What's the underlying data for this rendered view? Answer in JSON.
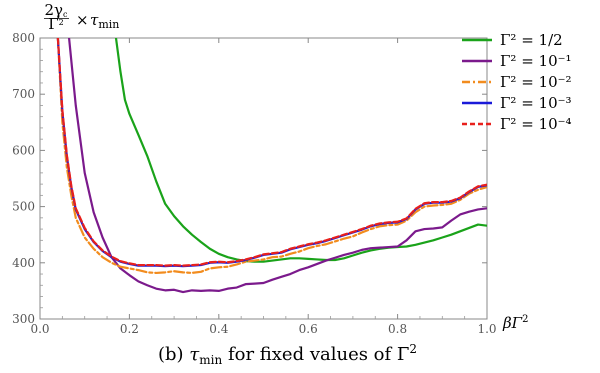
{
  "chart_data": {
    "type": "line",
    "title": "",
    "xlabel": "βΓ²",
    "ylabel": "2γc/Γ² × τmin",
    "caption": "(b) τmin for fixed values of Γ²",
    "xlim": [
      0,
      1.0
    ],
    "ylim": [
      300,
      800
    ],
    "x_ticks": [
      0,
      0.2,
      0.4,
      0.6,
      0.8,
      1.0
    ],
    "x_tick_labels": [
      "0.0",
      "0.2",
      "0.4",
      "0.6",
      "0.8",
      "1.0"
    ],
    "y_ticks": [
      300,
      400,
      500,
      600,
      700,
      800
    ],
    "y_tick_labels": [
      "300",
      "400",
      "500",
      "600",
      "700",
      "800"
    ],
    "grid": false,
    "legend_position": "top-right",
    "series": [
      {
        "name": "Γ² = 1/2",
        "color": "#1aa31a",
        "style": "solid",
        "points": [
          [
            0.17,
            800
          ],
          [
            0.18,
            740
          ],
          [
            0.19,
            690
          ],
          [
            0.2,
            665
          ],
          [
            0.22,
            628
          ],
          [
            0.24,
            590
          ],
          [
            0.26,
            545
          ],
          [
            0.28,
            505
          ],
          [
            0.3,
            483
          ],
          [
            0.32,
            465
          ],
          [
            0.34,
            450
          ],
          [
            0.36,
            437
          ],
          [
            0.38,
            425
          ],
          [
            0.4,
            416
          ],
          [
            0.42,
            410
          ],
          [
            0.44,
            406
          ],
          [
            0.46,
            403
          ],
          [
            0.48,
            402
          ],
          [
            0.5,
            402
          ],
          [
            0.52,
            404
          ],
          [
            0.54,
            406
          ],
          [
            0.56,
            408
          ],
          [
            0.58,
            408
          ],
          [
            0.6,
            407
          ],
          [
            0.62,
            406
          ],
          [
            0.64,
            405
          ],
          [
            0.66,
            405
          ],
          [
            0.68,
            408
          ],
          [
            0.7,
            413
          ],
          [
            0.72,
            418
          ],
          [
            0.74,
            422
          ],
          [
            0.76,
            425
          ],
          [
            0.78,
            427
          ],
          [
            0.8,
            428
          ],
          [
            0.82,
            429
          ],
          [
            0.84,
            432
          ],
          [
            0.86,
            436
          ],
          [
            0.88,
            440
          ],
          [
            0.9,
            445
          ],
          [
            0.92,
            450
          ],
          [
            0.94,
            456
          ],
          [
            0.96,
            462
          ],
          [
            0.98,
            468
          ],
          [
            1.0,
            466
          ]
        ]
      },
      {
        "name": "Γ² = 10⁻¹",
        "color": "#7b1a8c",
        "style": "solid",
        "points": [
          [
            0.065,
            800
          ],
          [
            0.08,
            680
          ],
          [
            0.1,
            560
          ],
          [
            0.12,
            490
          ],
          [
            0.14,
            445
          ],
          [
            0.16,
            410
          ],
          [
            0.18,
            390
          ],
          [
            0.2,
            378
          ],
          [
            0.22,
            367
          ],
          [
            0.24,
            360
          ],
          [
            0.26,
            354
          ],
          [
            0.28,
            351
          ],
          [
            0.3,
            352
          ],
          [
            0.32,
            348
          ],
          [
            0.34,
            351
          ],
          [
            0.36,
            350
          ],
          [
            0.38,
            351
          ],
          [
            0.4,
            350
          ],
          [
            0.42,
            354
          ],
          [
            0.44,
            356
          ],
          [
            0.46,
            362
          ],
          [
            0.48,
            363
          ],
          [
            0.5,
            364
          ],
          [
            0.52,
            370
          ],
          [
            0.54,
            375
          ],
          [
            0.56,
            380
          ],
          [
            0.58,
            387
          ],
          [
            0.6,
            392
          ],
          [
            0.62,
            398
          ],
          [
            0.64,
            404
          ],
          [
            0.66,
            409
          ],
          [
            0.68,
            414
          ],
          [
            0.7,
            418
          ],
          [
            0.72,
            423
          ],
          [
            0.74,
            426
          ],
          [
            0.76,
            427
          ],
          [
            0.78,
            428
          ],
          [
            0.8,
            429
          ],
          [
            0.82,
            440
          ],
          [
            0.84,
            456
          ],
          [
            0.86,
            460
          ],
          [
            0.88,
            461
          ],
          [
            0.9,
            463
          ],
          [
            0.92,
            475
          ],
          [
            0.94,
            486
          ],
          [
            0.96,
            491
          ],
          [
            0.98,
            495
          ],
          [
            1.0,
            497
          ]
        ]
      },
      {
        "name": "Γ² = 10⁻²",
        "color": "#f28c1e",
        "style": "dashdot",
        "points": [
          [
            0.04,
            800
          ],
          [
            0.05,
            650
          ],
          [
            0.06,
            570
          ],
          [
            0.07,
            520
          ],
          [
            0.08,
            480
          ],
          [
            0.1,
            445
          ],
          [
            0.12,
            425
          ],
          [
            0.14,
            410
          ],
          [
            0.16,
            400
          ],
          [
            0.18,
            393
          ],
          [
            0.2,
            390
          ],
          [
            0.22,
            387
          ],
          [
            0.24,
            383
          ],
          [
            0.26,
            382
          ],
          [
            0.28,
            383
          ],
          [
            0.3,
            385
          ],
          [
            0.32,
            383
          ],
          [
            0.34,
            382
          ],
          [
            0.36,
            384
          ],
          [
            0.38,
            390
          ],
          [
            0.4,
            392
          ],
          [
            0.42,
            393
          ],
          [
            0.44,
            397
          ],
          [
            0.46,
            402
          ],
          [
            0.48,
            404
          ],
          [
            0.5,
            406
          ],
          [
            0.52,
            410
          ],
          [
            0.54,
            411
          ],
          [
            0.56,
            416
          ],
          [
            0.58,
            420
          ],
          [
            0.6,
            426
          ],
          [
            0.62,
            430
          ],
          [
            0.64,
            433
          ],
          [
            0.66,
            438
          ],
          [
            0.68,
            443
          ],
          [
            0.7,
            447
          ],
          [
            0.72,
            454
          ],
          [
            0.74,
            460
          ],
          [
            0.76,
            465
          ],
          [
            0.78,
            467
          ],
          [
            0.8,
            468
          ],
          [
            0.82,
            475
          ],
          [
            0.84,
            490
          ],
          [
            0.86,
            500
          ],
          [
            0.88,
            502
          ],
          [
            0.9,
            503
          ],
          [
            0.92,
            505
          ],
          [
            0.94,
            512
          ],
          [
            0.96,
            523
          ],
          [
            0.98,
            530
          ],
          [
            1.0,
            535
          ]
        ]
      },
      {
        "name": "Γ² = 10⁻³",
        "color": "#1a1ad9",
        "style": "solid",
        "points": [
          [
            0.04,
            800
          ],
          [
            0.05,
            670
          ],
          [
            0.06,
            590
          ],
          [
            0.07,
            535
          ],
          [
            0.08,
            495
          ],
          [
            0.1,
            460
          ],
          [
            0.12,
            437
          ],
          [
            0.14,
            421
          ],
          [
            0.16,
            410
          ],
          [
            0.18,
            402
          ],
          [
            0.2,
            398
          ],
          [
            0.22,
            395
          ],
          [
            0.24,
            395
          ],
          [
            0.26,
            395
          ],
          [
            0.28,
            394
          ],
          [
            0.3,
            395
          ],
          [
            0.32,
            394
          ],
          [
            0.34,
            395
          ],
          [
            0.36,
            396
          ],
          [
            0.38,
            400
          ],
          [
            0.4,
            401
          ],
          [
            0.42,
            400
          ],
          [
            0.44,
            402
          ],
          [
            0.46,
            405
          ],
          [
            0.48,
            409
          ],
          [
            0.5,
            414
          ],
          [
            0.52,
            416
          ],
          [
            0.54,
            418
          ],
          [
            0.56,
            424
          ],
          [
            0.58,
            428
          ],
          [
            0.6,
            432
          ],
          [
            0.62,
            435
          ],
          [
            0.64,
            439
          ],
          [
            0.66,
            444
          ],
          [
            0.68,
            449
          ],
          [
            0.7,
            454
          ],
          [
            0.72,
            459
          ],
          [
            0.74,
            465
          ],
          [
            0.76,
            469
          ],
          [
            0.78,
            471
          ],
          [
            0.8,
            472
          ],
          [
            0.82,
            478
          ],
          [
            0.84,
            495
          ],
          [
            0.86,
            505
          ],
          [
            0.88,
            507
          ],
          [
            0.9,
            507
          ],
          [
            0.92,
            509
          ],
          [
            0.94,
            515
          ],
          [
            0.96,
            526
          ],
          [
            0.98,
            535
          ],
          [
            1.0,
            538
          ]
        ]
      },
      {
        "name": "Γ² = 10⁻⁴",
        "color": "#e8201c",
        "style": "dashed",
        "points": [
          [
            0.04,
            800
          ],
          [
            0.05,
            672
          ],
          [
            0.06,
            592
          ],
          [
            0.07,
            537
          ],
          [
            0.08,
            497
          ],
          [
            0.1,
            462
          ],
          [
            0.12,
            438
          ],
          [
            0.14,
            422
          ],
          [
            0.16,
            411
          ],
          [
            0.18,
            403
          ],
          [
            0.2,
            399
          ],
          [
            0.22,
            396
          ],
          [
            0.24,
            396
          ],
          [
            0.26,
            396
          ],
          [
            0.28,
            395
          ],
          [
            0.3,
            396
          ],
          [
            0.32,
            395
          ],
          [
            0.34,
            396
          ],
          [
            0.36,
            397
          ],
          [
            0.38,
            401
          ],
          [
            0.4,
            402
          ],
          [
            0.42,
            401
          ],
          [
            0.44,
            403
          ],
          [
            0.46,
            406
          ],
          [
            0.48,
            410
          ],
          [
            0.5,
            415
          ],
          [
            0.52,
            417
          ],
          [
            0.54,
            419
          ],
          [
            0.56,
            425
          ],
          [
            0.58,
            429
          ],
          [
            0.6,
            433
          ],
          [
            0.62,
            436
          ],
          [
            0.64,
            440
          ],
          [
            0.66,
            445
          ],
          [
            0.68,
            450
          ],
          [
            0.7,
            455
          ],
          [
            0.72,
            460
          ],
          [
            0.74,
            466
          ],
          [
            0.76,
            470
          ],
          [
            0.78,
            472
          ],
          [
            0.8,
            473
          ],
          [
            0.82,
            479
          ],
          [
            0.84,
            496
          ],
          [
            0.86,
            506
          ],
          [
            0.88,
            508
          ],
          [
            0.9,
            508
          ],
          [
            0.92,
            510
          ],
          [
            0.94,
            516
          ],
          [
            0.96,
            527
          ],
          [
            0.98,
            536
          ],
          [
            1.0,
            539
          ]
        ]
      }
    ]
  }
}
